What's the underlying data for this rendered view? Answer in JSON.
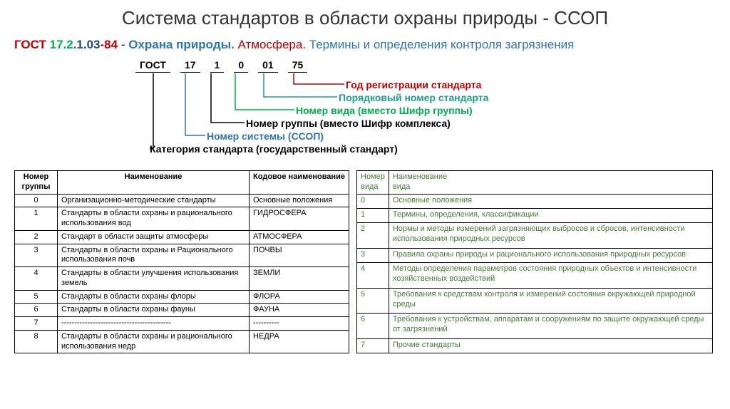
{
  "title": "Система стандартов в области охраны природы - ССОП",
  "subtitle": {
    "gost": "ГОСТ ",
    "c1": "17.2",
    "c2": ".1.03",
    "c3": "-84",
    "sep": " - ",
    "ohr": "Охрана природы. ",
    "atm": "Атмосфера. ",
    "rest": "Термины и определения контроля загрязнения"
  },
  "diagram": {
    "codes": {
      "g": "ГОСТ",
      "a": "17",
      "b": "1",
      "c": "0",
      "d": "01",
      "e": "75"
    },
    "l1": "Год регистрации стандарта",
    "l2": "Порядковый номер стандарта",
    "l3": "Номер вида (вместо Шифр группы)",
    "l4": "Номер группы (вместо Шифр комплекса)",
    "l5": "Номер системы (ССОП)",
    "l6": "Категория стандарта (государственный стандарт)"
  },
  "leftTable": {
    "headers": {
      "h1": "Номер группы",
      "h2": "Наименование",
      "h3": "Кодовое наименование"
    },
    "rows": [
      {
        "n": "0",
        "name": "Организационно-методические стандарты",
        "code": "Основные положения"
      },
      {
        "n": "1",
        "name": "Стандарты в области охраны и рационального использования вод",
        "code": "ГИДРОСФЕРА"
      },
      {
        "n": "2",
        "name": "Стандарт в области защиты атмосферы",
        "code": "АТМОСФЕРА"
      },
      {
        "n": "3",
        "name": "Стандарты  в области охраны и Рационального использования почв",
        "code": "ПОЧВЫ"
      },
      {
        "n": "4",
        "name": "Стандарты в области улучшения использования земель",
        "code": "ЗЕМЛИ"
      },
      {
        "n": "5",
        "name": "Стандарты в области охраны флоры",
        "code": "ФЛОРА"
      },
      {
        "n": "6",
        "name": "Стандарты в области охраны фауны",
        "code": "ФАУНА"
      },
      {
        "n": "7",
        "name": "------------------------------------------",
        "code": "----------"
      },
      {
        "n": "8",
        "name": "Стандарты в области охраны и рационального использования недр",
        "code": "НЕДРА"
      }
    ]
  },
  "rightTable": {
    "headers": {
      "h1a": "Номер",
      "h1b": "вида",
      "h2a": "Наименование",
      "h2b": "вида"
    },
    "rows": [
      {
        "n": "0",
        "name": "Основные положения"
      },
      {
        "n": "1",
        "name": "Термины, определения, классификации"
      },
      {
        "n": "2",
        "name": "Нормы и методы измерений загрязняющих выбросов и сбросов, интенсивности использования природных ресурсов"
      },
      {
        "n": "3",
        "name": "Правила охраны природы и рационального использования природных ресурсов"
      },
      {
        "n": "4",
        "name": "Методы определения параметров состояния природных объектов и интенсивности хозяйственных воздействий"
      },
      {
        "n": "5",
        "name": "Требования к средствам контроля и измерений состояния окружающей природной среды"
      },
      {
        "n": "6",
        "name": "Требования к устройствам, аппаратам и сооружениям по защите окружающей среды от загрязнений"
      },
      {
        "n": "7",
        "name": "Прочие стандарты"
      }
    ]
  }
}
